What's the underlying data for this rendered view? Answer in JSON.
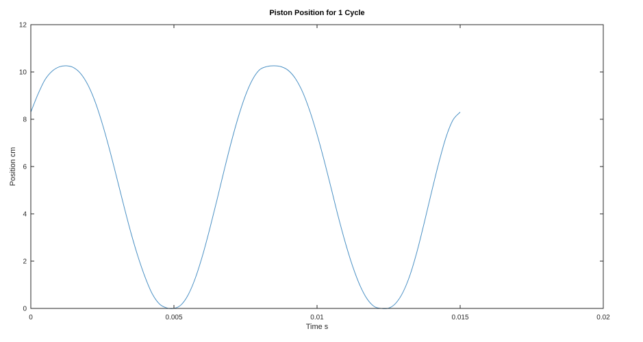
{
  "chart_data": {
    "type": "line",
    "title": "Piston Position for 1 Cycle",
    "xlabel": "Time s",
    "ylabel": "Position cm",
    "xlim": [
      0,
      0.02
    ],
    "ylim": [
      0,
      12
    ],
    "xticks": [
      0,
      0.005,
      0.01,
      0.015,
      0.02
    ],
    "xtick_labels": [
      "0",
      "0.005",
      "0.01",
      "0.015",
      "0.02"
    ],
    "yticks": [
      0,
      2,
      4,
      6,
      8,
      10,
      12
    ],
    "ytick_labels": [
      "0",
      "2",
      "4",
      "6",
      "8",
      "10",
      "12"
    ],
    "grid": false,
    "line_color": "#4a90c4",
    "series": [
      {
        "x": [
          0,
          0.00025,
          0.0005,
          0.00075,
          0.001,
          0.00125,
          0.0015,
          0.00175,
          0.002,
          0.00225,
          0.0025,
          0.00275,
          0.003,
          0.00325,
          0.0035,
          0.00375,
          0.004,
          0.00425,
          0.0045,
          0.00475,
          0.005,
          0.00525,
          0.0055,
          0.00575,
          0.006,
          0.00625,
          0.0065,
          0.00675,
          0.007,
          0.00725,
          0.0075,
          0.00775,
          0.008,
          0.00825,
          0.0085,
          0.00875,
          0.009,
          0.00925,
          0.0095,
          0.00975,
          0.01,
          0.01025,
          0.0105,
          0.01075,
          0.011,
          0.01125,
          0.0115,
          0.01175,
          0.012,
          0.01225,
          0.0125,
          0.01275,
          0.013,
          0.01325,
          0.0135,
          0.01375,
          0.014,
          0.01425,
          0.0145,
          0.01475,
          0.015
        ],
        "y": [
          8.3,
          9.06,
          9.68,
          10.04,
          10.22,
          10.26,
          10.18,
          9.92,
          9.44,
          8.73,
          7.8,
          6.72,
          5.54,
          4.34,
          3.19,
          2.17,
          1.3,
          0.6,
          0.18,
          0.02,
          0.0,
          0.15,
          0.58,
          1.29,
          2.24,
          3.36,
          4.57,
          5.82,
          7.02,
          8.1,
          9.01,
          9.69,
          10.1,
          10.23,
          10.26,
          10.22,
          10.06,
          9.71,
          9.14,
          8.34,
          7.36,
          6.25,
          5.05,
          3.84,
          2.73,
          1.76,
          0.97,
          0.4,
          0.08,
          0.0,
          0.01,
          0.22,
          0.68,
          1.42,
          2.44,
          3.65,
          4.92,
          6.14,
          7.22,
          7.97,
          8.3
        ]
      }
    ]
  }
}
